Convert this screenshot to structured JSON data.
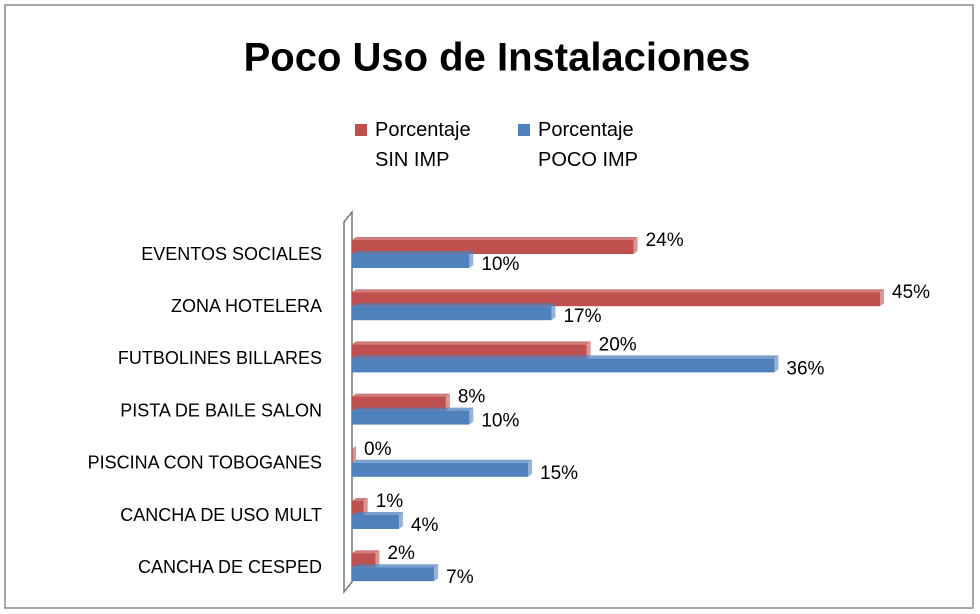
{
  "chart_data": {
    "type": "hbar",
    "title": "Poco Uso de Instalaciones",
    "categories": [
      "EVENTOS SOCIALES",
      "ZONA HOTELERA",
      "FUTBOLINES BILLARES",
      "PISTA DE BAILE SALON",
      "PISCINA CON TOBOGANES",
      "CANCHA  DE USO MULT",
      "CANCHA DE CESPED"
    ],
    "series": [
      {
        "name": "Porcentaje SIN IMP",
        "color": "#c0504d",
        "values": [
          24,
          45,
          20,
          8,
          0,
          1,
          2
        ],
        "value_labels": [
          "24%",
          "45%",
          "20%",
          "8%",
          "0%",
          "1%",
          "2%"
        ]
      },
      {
        "name": "Porcentaje POCO IMP",
        "color": "#4f81bd",
        "values": [
          10,
          17,
          36,
          10,
          15,
          4,
          7
        ],
        "value_labels": [
          "10%",
          "17%",
          "36%",
          "10%",
          "15%",
          "4%",
          "7%"
        ]
      }
    ],
    "xlim": [
      0,
      45
    ],
    "legend": "top"
  }
}
